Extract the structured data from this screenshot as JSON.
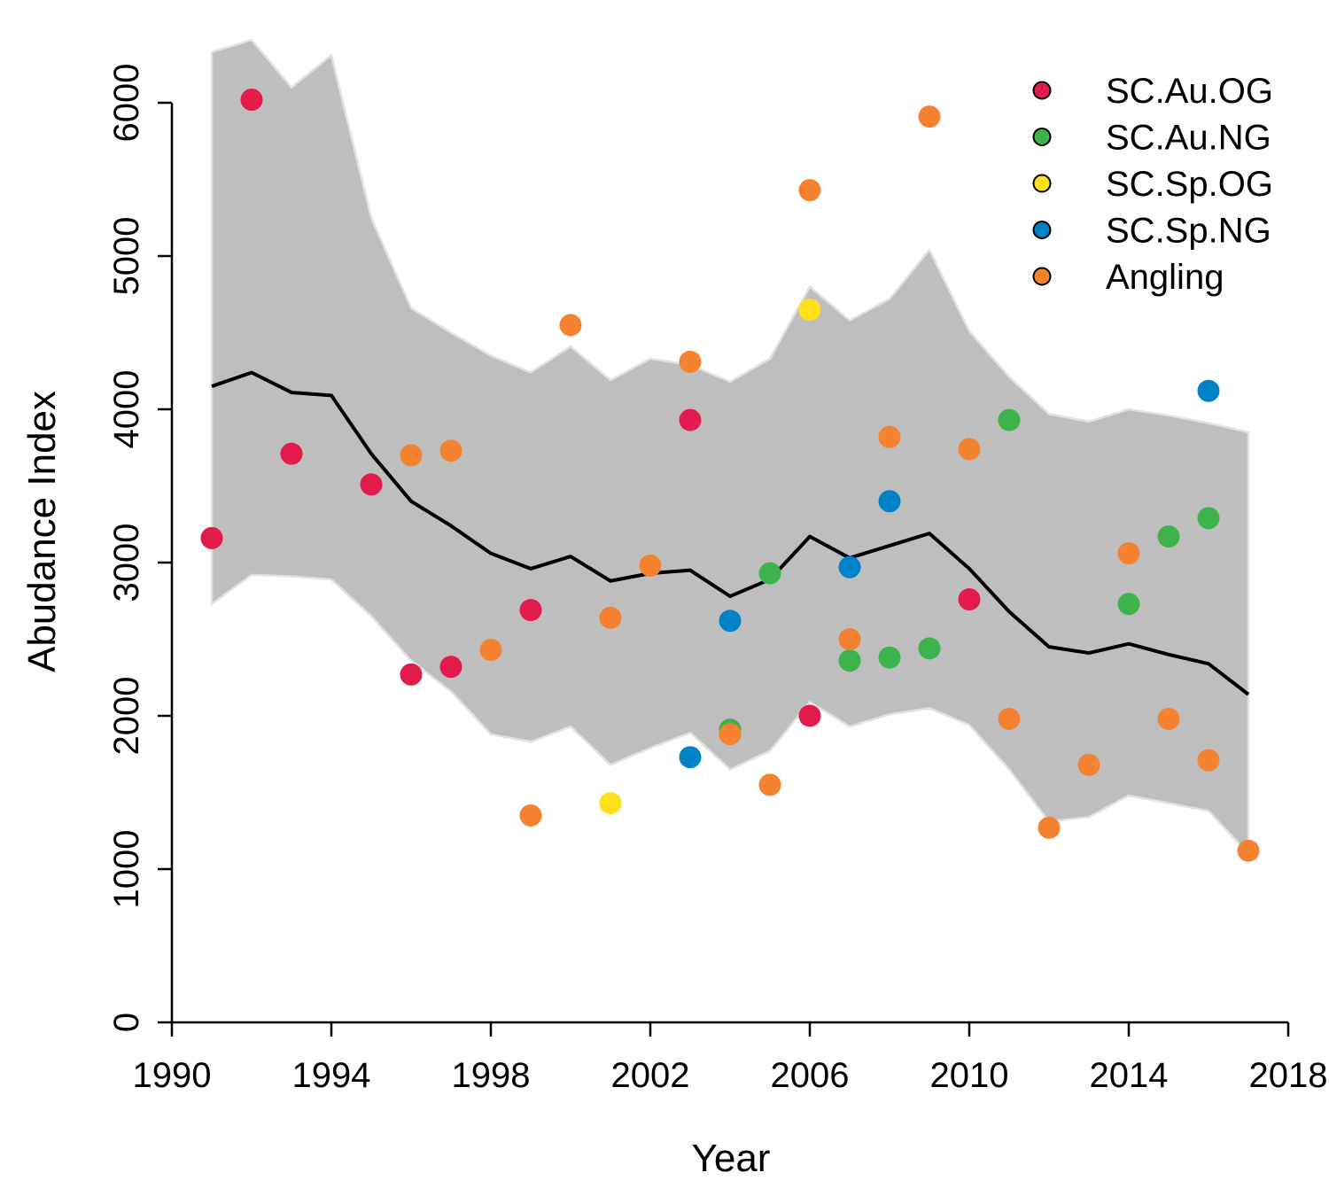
{
  "chart_data": {
    "type": "scatter",
    "xlabel": "Year",
    "ylabel": "Abudance Index",
    "xlim": [
      1990,
      2018
    ],
    "ylim": [
      0,
      6000
    ],
    "x_ticks": [
      1990,
      1994,
      1998,
      2002,
      2006,
      2010,
      2014,
      2018
    ],
    "y_ticks": [
      0,
      1000,
      2000,
      3000,
      4000,
      5000,
      6000
    ],
    "grid": false,
    "legend_position": "top-right",
    "trend": {
      "years": [
        1991,
        1992,
        1993,
        1994,
        1995,
        1996,
        1997,
        1998,
        1999,
        2000,
        2001,
        2002,
        2003,
        2004,
        2005,
        2006,
        2007,
        2008,
        2009,
        2010,
        2011,
        2012,
        2013,
        2014,
        2015,
        2016,
        2017
      ],
      "mean": [
        4150,
        4240,
        4110,
        4090,
        3710,
        3400,
        3240,
        3060,
        2960,
        3040,
        2880,
        2930,
        2950,
        2780,
        2890,
        3170,
        3030,
        3110,
        3190,
        2960,
        2680,
        2450,
        2410,
        2470,
        2400,
        2340,
        2140
      ],
      "lower": [
        2730,
        2920,
        2910,
        2890,
        2650,
        2360,
        2160,
        1880,
        1830,
        1930,
        1680,
        1790,
        1890,
        1650,
        1770,
        2090,
        1930,
        2010,
        2050,
        1940,
        1650,
        1310,
        1340,
        1480,
        1430,
        1380,
        1100
      ],
      "upper": [
        6330,
        6410,
        6100,
        6310,
        5250,
        4660,
        4500,
        4350,
        4240,
        4410,
        4190,
        4330,
        4290,
        4180,
        4330,
        4800,
        4580,
        4720,
        5040,
        4510,
        4210,
        3970,
        3920,
        4000,
        3960,
        3910,
        3850
      ],
      "line_color": "#000000",
      "band_color": "#bebebe"
    },
    "series": [
      {
        "name": "SC.Au.OG",
        "color": "#e31a4c",
        "x": [
          1991,
          1992,
          1993,
          1995,
          1996,
          1997,
          1999,
          2003,
          2006,
          2010
        ],
        "y": [
          3160,
          6020,
          3710,
          3510,
          2270,
          2320,
          2690,
          3930,
          2000,
          2760
        ]
      },
      {
        "name": "SC.Au.NG",
        "color": "#3cb44b",
        "x": [
          2004,
          2005,
          2007,
          2008,
          2009,
          2011,
          2014,
          2015,
          2016
        ],
        "y": [
          1910,
          2930,
          2360,
          2380,
          2440,
          3930,
          2730,
          3170,
          3290
        ]
      },
      {
        "name": "SC.Sp.OG",
        "color": "#ffe119",
        "x": [
          2001,
          2006
        ],
        "y": [
          1430,
          4650
        ]
      },
      {
        "name": "SC.Sp.NG",
        "color": "#0082c8",
        "x": [
          2003,
          2004,
          2007,
          2008,
          2016
        ],
        "y": [
          1730,
          2620,
          2970,
          3400,
          4120
        ]
      },
      {
        "name": "Angling",
        "color": "#f58231",
        "x": [
          1996,
          1997,
          1998,
          1999,
          2000,
          2001,
          2002,
          2003,
          2004,
          2005,
          2006,
          2007,
          2008,
          2009,
          2010,
          2011,
          2012,
          2013,
          2014,
          2015,
          2016,
          2017
        ],
        "y": [
          3700,
          3730,
          2430,
          1350,
          4550,
          2640,
          2980,
          4310,
          1880,
          1550,
          5430,
          2500,
          3820,
          5910,
          3740,
          1980,
          1270,
          1680,
          3060,
          1980,
          1710,
          1120
        ]
      }
    ]
  }
}
